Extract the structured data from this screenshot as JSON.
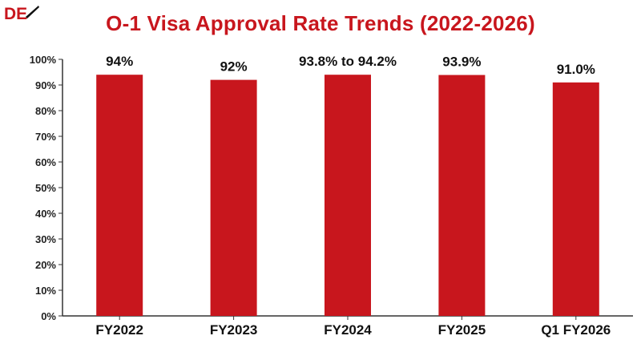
{
  "brand": {
    "logo_text": "DE",
    "accent": "#c8161d"
  },
  "chart_data": {
    "type": "bar",
    "title": "O-1 Visa Approval Rate Trends (2022-2026)",
    "xlabel": "",
    "ylabel": "",
    "categories": [
      "FY2022",
      "FY2023",
      "FY2024",
      "FY2025",
      "Q1 FY2026"
    ],
    "values": [
      94,
      92,
      94,
      93.9,
      91.0
    ],
    "data_labels": [
      "94%",
      "92%",
      "93.8% to 94.2%",
      "93.9%",
      "91.0%"
    ],
    "ylim": [
      0,
      100
    ],
    "yticks": [
      "0%",
      "10%",
      "20%",
      "30%",
      "40%",
      "50%",
      "60%",
      "70%",
      "80%",
      "90%",
      "100%"
    ],
    "bar_color": "#c8161d",
    "grid": false,
    "legend": "none"
  }
}
